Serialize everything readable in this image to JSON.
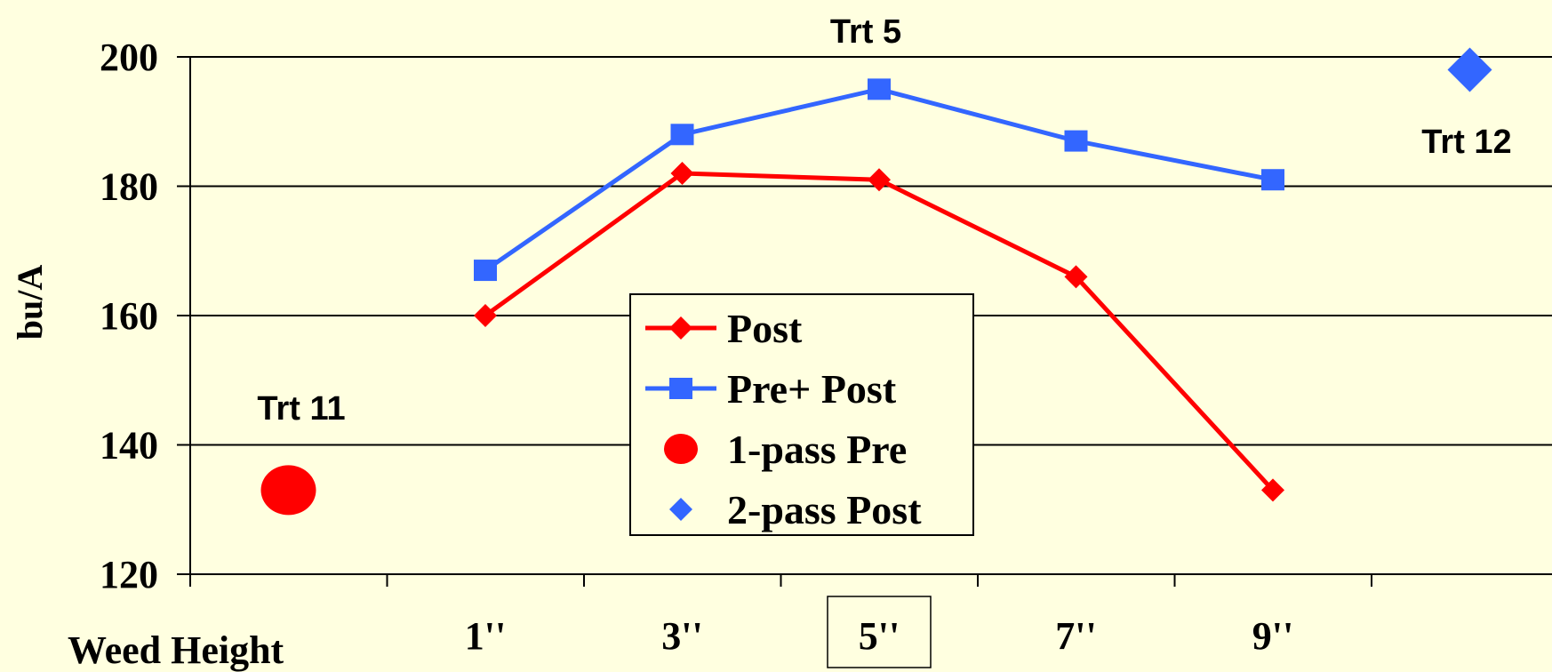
{
  "chart_data": {
    "type": "line",
    "ylabel": "bu/A",
    "xlabel": "Weed Height",
    "ylim": [
      120,
      200
    ],
    "yticks": [
      120,
      140,
      160,
      180,
      200
    ],
    "grid": true,
    "categories": [
      "",
      "1''",
      "3''",
      "5''",
      "7''",
      "9''",
      ""
    ],
    "highlighted_category": "5''",
    "series": [
      {
        "name": "Post",
        "type": "line",
        "marker": "diamond",
        "color": "#ff0000",
        "points": [
          {
            "x": "1''",
            "y": 160
          },
          {
            "x": "3''",
            "y": 182
          },
          {
            "x": "5''",
            "y": 181
          },
          {
            "x": "7''",
            "y": 166
          },
          {
            "x": "9''",
            "y": 133
          }
        ]
      },
      {
        "name": "Pre+ Post",
        "type": "line",
        "marker": "square",
        "color": "#3366ff",
        "points": [
          {
            "x": "1''",
            "y": 167
          },
          {
            "x": "3''",
            "y": 188
          },
          {
            "x": "5''",
            "y": 195
          },
          {
            "x": "7''",
            "y": 187
          },
          {
            "x": "9''",
            "y": 181
          }
        ]
      },
      {
        "name": "1-pass Pre",
        "type": "scatter",
        "marker": "circle",
        "color": "#ff0000",
        "points": [
          {
            "x": 0,
            "y": 133
          }
        ]
      },
      {
        "name": "2-pass Post",
        "type": "scatter",
        "marker": "diamond",
        "color": "#3366ff",
        "points": [
          {
            "x": 6,
            "y": 198
          }
        ]
      }
    ],
    "annotations": [
      {
        "text": "Trt 11"
      },
      {
        "text": "Trt 5"
      },
      {
        "text": "Trt 12"
      }
    ],
    "legend": {
      "placement": "center"
    }
  }
}
